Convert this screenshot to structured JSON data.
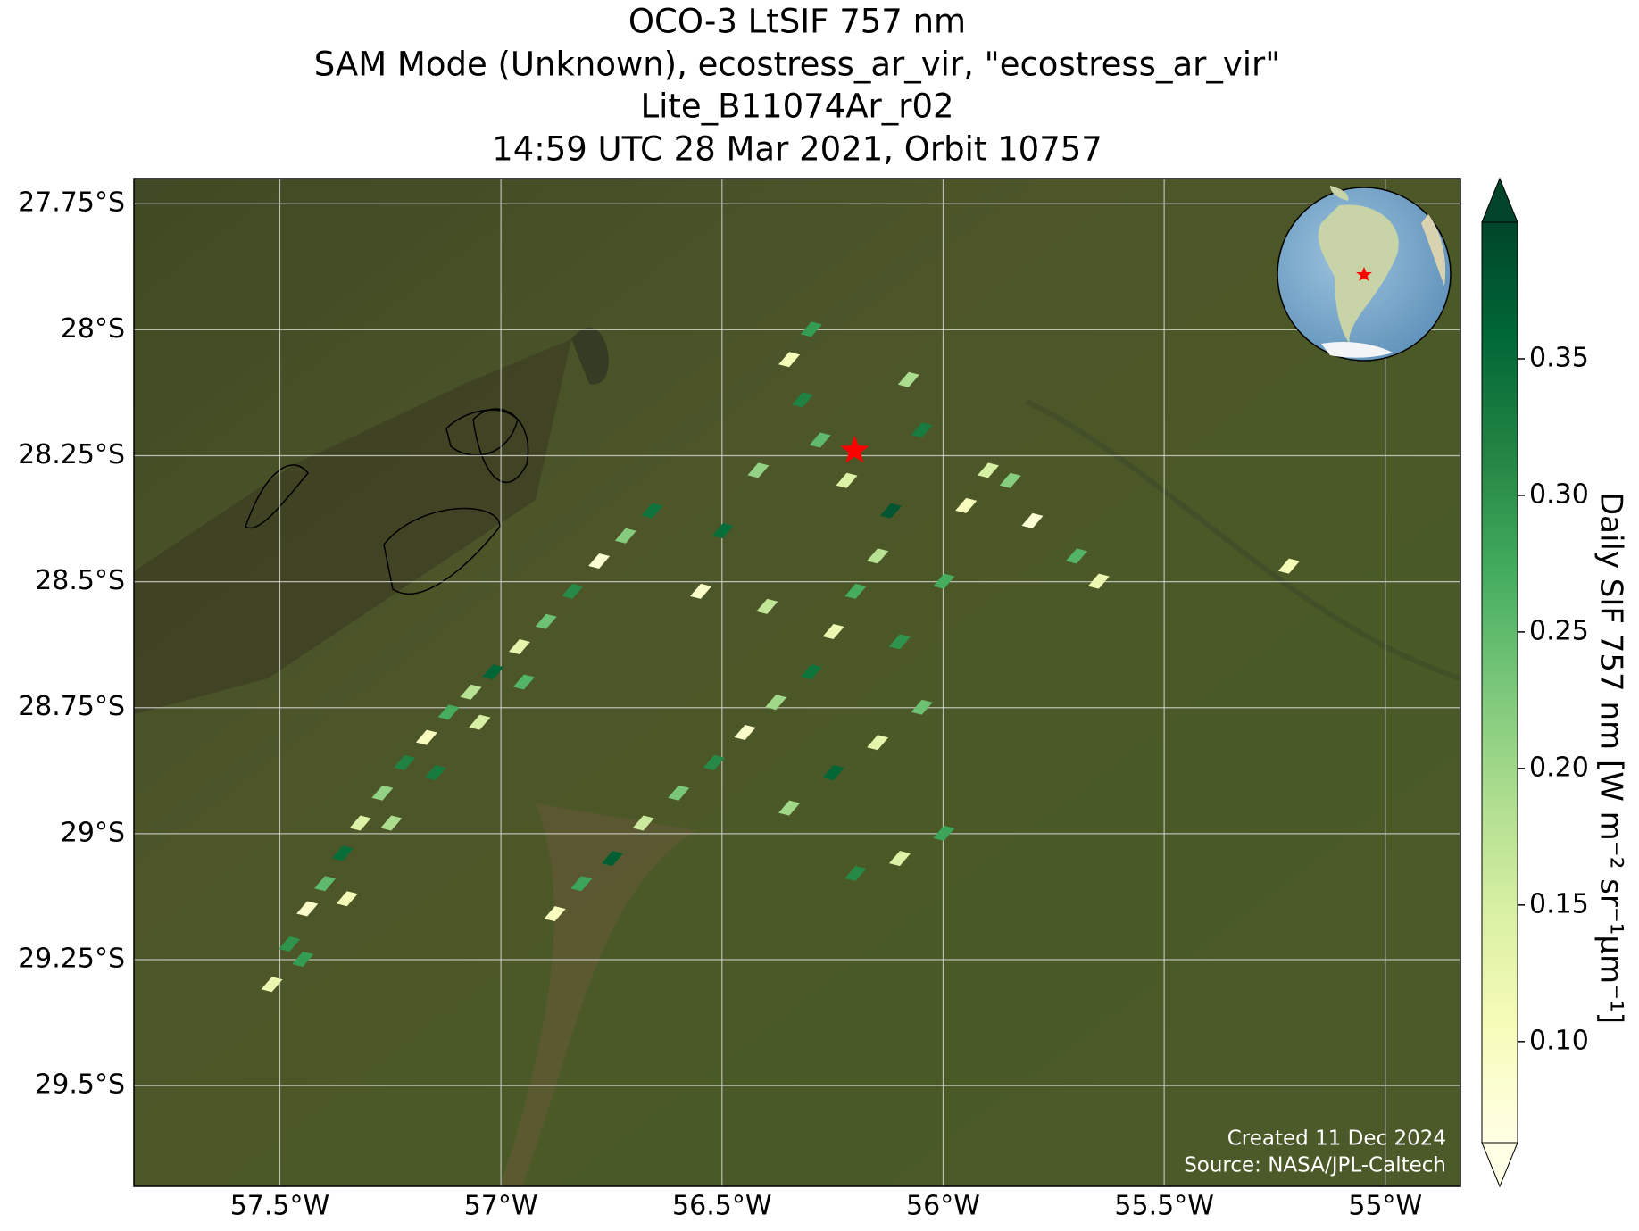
{
  "chart_data": {
    "type": "map",
    "title": [
      "OCO-3 LtSIF 757 nm",
      "SAM Mode (Unknown), ecostress_ar_vir, \"ecostress_ar_vir\"",
      "Lite_B11074Ar_r02",
      "14:59 UTC 28 Mar 2021, Orbit 10757"
    ],
    "xlim": [
      -57.83,
      -54.83
    ],
    "ylim": [
      -29.7,
      -27.7
    ],
    "xticks": [
      {
        "value": -57.5,
        "label": "57.5°W"
      },
      {
        "value": -57,
        "label": "57°W"
      },
      {
        "value": -56.5,
        "label": "56.5°W"
      },
      {
        "value": -56,
        "label": "56°W"
      },
      {
        "value": -55.5,
        "label": "55.5°W"
      },
      {
        "value": -55,
        "label": "55°W"
      }
    ],
    "yticks": [
      {
        "value": -27.75,
        "label": "27.75°S"
      },
      {
        "value": -28,
        "label": "28°S"
      },
      {
        "value": -28.25,
        "label": "28.25°S"
      },
      {
        "value": -28.5,
        "label": "28.5°S"
      },
      {
        "value": -28.75,
        "label": "28.75°S"
      },
      {
        "value": -29,
        "label": "29°S"
      },
      {
        "value": -29.25,
        "label": "29.25°S"
      },
      {
        "value": -29.5,
        "label": "29.5°S"
      }
    ],
    "grid": true,
    "colormap": [
      "#ffffe5",
      "#f7fcb9",
      "#d9f0a3",
      "#addd8e",
      "#78c679",
      "#41ab5d",
      "#238443",
      "#006837",
      "#004529"
    ],
    "colorbar": {
      "label": "Daily SIF 757 nm [W m⁻² sr⁻¹μm⁻¹]",
      "clim": [
        0.063,
        0.4
      ],
      "ticks": [
        {
          "value": 0.1,
          "label": "0.10"
        },
        {
          "value": 0.15,
          "label": "0.15"
        },
        {
          "value": 0.2,
          "label": "0.20"
        },
        {
          "value": 0.25,
          "label": "0.25"
        },
        {
          "value": 0.3,
          "label": "0.30"
        },
        {
          "value": 0.35,
          "label": "0.35"
        }
      ]
    },
    "cells": {
      "lon": [
        -57.52,
        -57.48,
        -57.44,
        -57.4,
        -57.36,
        -57.32,
        -57.27,
        -57.22,
        -57.17,
        -57.12,
        -57.07,
        -57.02,
        -56.96,
        -56.9,
        -56.84,
        -56.78,
        -56.72,
        -56.66,
        -57.45,
        -57.35,
        -57.25,
        -57.15,
        -57.05,
        -56.95,
        -56.88,
        -56.82,
        -56.75,
        -56.68,
        -56.6,
        -56.52,
        -56.45,
        -56.38,
        -56.3,
        -56.25,
        -56.2,
        -56.15,
        -56.12,
        -56.22,
        -56.28,
        -56.32,
        -56.35,
        -56.3,
        -56.42,
        -56.5,
        -56.55,
        -56.4,
        -56.1,
        -56.05,
        -56.15,
        -56.25,
        -56.35,
        -56.0,
        -55.95,
        -55.9,
        -55.85,
        -55.8,
        -55.7,
        -55.65,
        -56.05,
        -56.08,
        -56.0,
        -56.1,
        -56.2,
        -55.22
      ],
      "lat": [
        -29.3,
        -29.22,
        -29.15,
        -29.1,
        -29.04,
        -28.98,
        -28.92,
        -28.86,
        -28.81,
        -28.76,
        -28.72,
        -28.68,
        -28.63,
        -28.58,
        -28.52,
        -28.46,
        -28.41,
        -28.36,
        -29.25,
        -29.13,
        -28.98,
        -28.88,
        -28.78,
        -28.7,
        -29.16,
        -29.1,
        -29.05,
        -28.98,
        -28.92,
        -28.86,
        -28.8,
        -28.74,
        -28.68,
        -28.6,
        -28.52,
        -28.45,
        -28.36,
        -28.3,
        -28.22,
        -28.14,
        -28.06,
        -28.0,
        -28.28,
        -28.4,
        -28.52,
        -28.55,
        -28.62,
        -28.75,
        -28.82,
        -28.88,
        -28.95,
        -28.5,
        -28.35,
        -28.28,
        -28.3,
        -28.38,
        -28.45,
        -28.5,
        -28.2,
        -28.1,
        -29.0,
        -29.05,
        -29.08,
        -28.47
      ],
      "values": [
        0.12,
        0.3,
        0.09,
        0.25,
        0.35,
        0.14,
        0.21,
        0.32,
        0.1,
        0.27,
        0.18,
        0.36,
        0.13,
        0.24,
        0.31,
        0.08,
        0.22,
        0.34,
        0.29,
        0.11,
        0.19,
        0.33,
        0.15,
        0.26,
        0.1,
        0.28,
        0.37,
        0.16,
        0.23,
        0.31,
        0.09,
        0.2,
        0.34,
        0.12,
        0.27,
        0.18,
        0.38,
        0.14,
        0.25,
        0.32,
        0.11,
        0.29,
        0.21,
        0.35,
        0.09,
        0.17,
        0.3,
        0.24,
        0.13,
        0.36,
        0.2,
        0.27,
        0.1,
        0.15,
        0.22,
        0.08,
        0.26,
        0.12,
        0.33,
        0.19,
        0.28,
        0.14,
        0.31,
        0.11
      ]
    },
    "target": {
      "lon": -56.2,
      "lat": -28.24
    },
    "annotations": [
      "Created 11 Dec 2024",
      "Source: NASA/JPL-Caltech"
    ]
  }
}
